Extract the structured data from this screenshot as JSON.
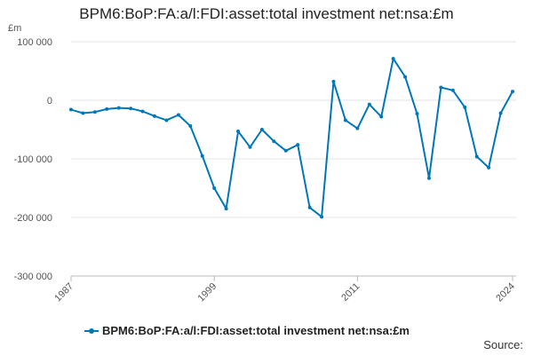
{
  "chart_data": {
    "type": "line",
    "title": "BPM6:BoP:FA:a/l:FDI:asset:total investment net:nsa:£m",
    "ylabel": "£m",
    "xlabel": "",
    "ylim": [
      -300000,
      100000
    ],
    "xlim": [
      1987,
      2024
    ],
    "yticks": [
      100000,
      0,
      -100000,
      -200000,
      -300000
    ],
    "ytick_labels": [
      "100 000",
      "0",
      "-100 000",
      "-200 000",
      "-300 000"
    ],
    "xticks": [
      1987,
      1999,
      2011,
      2024
    ],
    "xtick_labels": [
      "1987",
      "1999",
      "2011",
      "2024"
    ],
    "grid": "horizontal",
    "legend_position": "bottom",
    "series": [
      {
        "name": "BPM6:BoP:FA:a/l:FDI:asset:total investment net:nsa:£m",
        "color": "#0077b6",
        "x": [
          1987,
          1988,
          1989,
          1990,
          1991,
          1992,
          1993,
          1994,
          1995,
          1996,
          1997,
          1998,
          1999,
          2000,
          2001,
          2002,
          2003,
          2004,
          2005,
          2006,
          2007,
          2008,
          2009,
          2010,
          2011,
          2012,
          2013,
          2014,
          2015,
          2016,
          2017,
          2018,
          2019,
          2020,
          2021,
          2022,
          2023,
          2024
        ],
        "values": [
          -16000,
          -22000,
          -20000,
          -15000,
          -13000,
          -14000,
          -19000,
          -27000,
          -34000,
          -25000,
          -44000,
          -95000,
          -150000,
          -185000,
          -53000,
          -80000,
          -50000,
          -70000,
          -86000,
          -76000,
          -183000,
          -199000,
          32000,
          -34000,
          -48000,
          -7000,
          -28000,
          71000,
          40000,
          -23000,
          -133000,
          22000,
          17000,
          -12000,
          -96000,
          -115000,
          -22000,
          15000
        ]
      }
    ]
  },
  "source_label": "Source:"
}
